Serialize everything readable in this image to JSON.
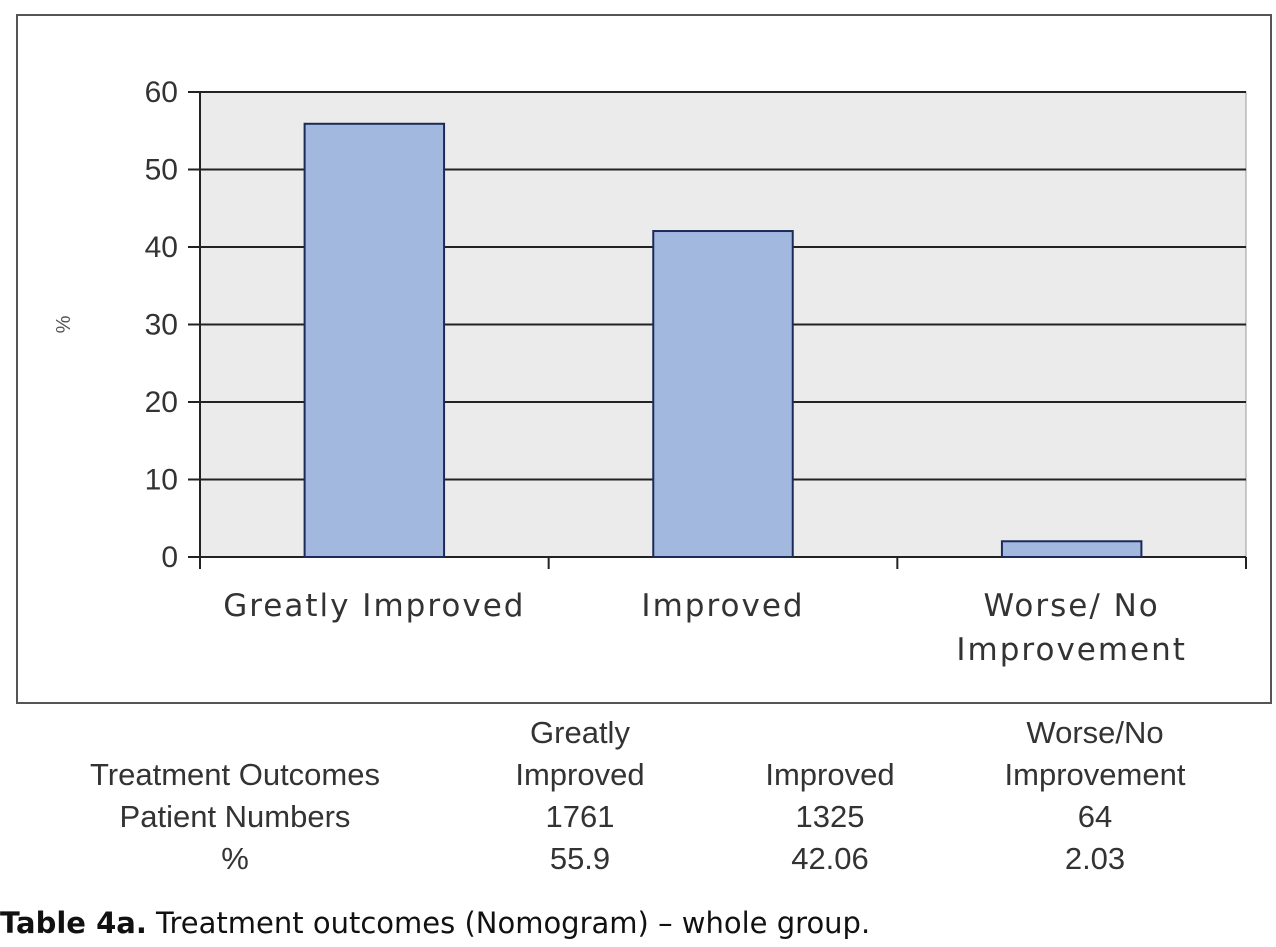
{
  "chart_data": {
    "type": "bar",
    "categories": [
      "Greatly Improved",
      "Improved",
      "Worse/ No Improvement"
    ],
    "category_label_lines": [
      [
        "Greatly Improved"
      ],
      [
        "Improved"
      ],
      [
        "Worse/ No",
        "Improvement"
      ]
    ],
    "values": [
      55.9,
      42.06,
      2.03
    ],
    "ylabel": "%",
    "ylim": [
      0,
      60
    ],
    "yticks": [
      0,
      10,
      20,
      30,
      40,
      50,
      60
    ],
    "grid": true,
    "bar_color": "#a3b8de",
    "bar_stroke": "#1c2a5a",
    "plot_background": "#ebebeb"
  },
  "table": {
    "columns": [
      "Greatly Improved",
      "Improved",
      "Worse/No Improvement"
    ],
    "header_lines": [
      [
        "Greatly",
        "Improved"
      ],
      [
        "Improved"
      ],
      [
        "Worse/No",
        "Improvement"
      ]
    ],
    "rows": [
      {
        "label": "Treatment Outcomes"
      },
      {
        "label": "Patient Numbers",
        "values": [
          "1761",
          "1325",
          "64"
        ]
      },
      {
        "label": "%",
        "values": [
          "55.9",
          "42.06",
          "2.03"
        ]
      }
    ]
  },
  "caption": {
    "bold": "Table 4a.",
    "text": " Treatment outcomes (Nomogram) – whole group."
  }
}
